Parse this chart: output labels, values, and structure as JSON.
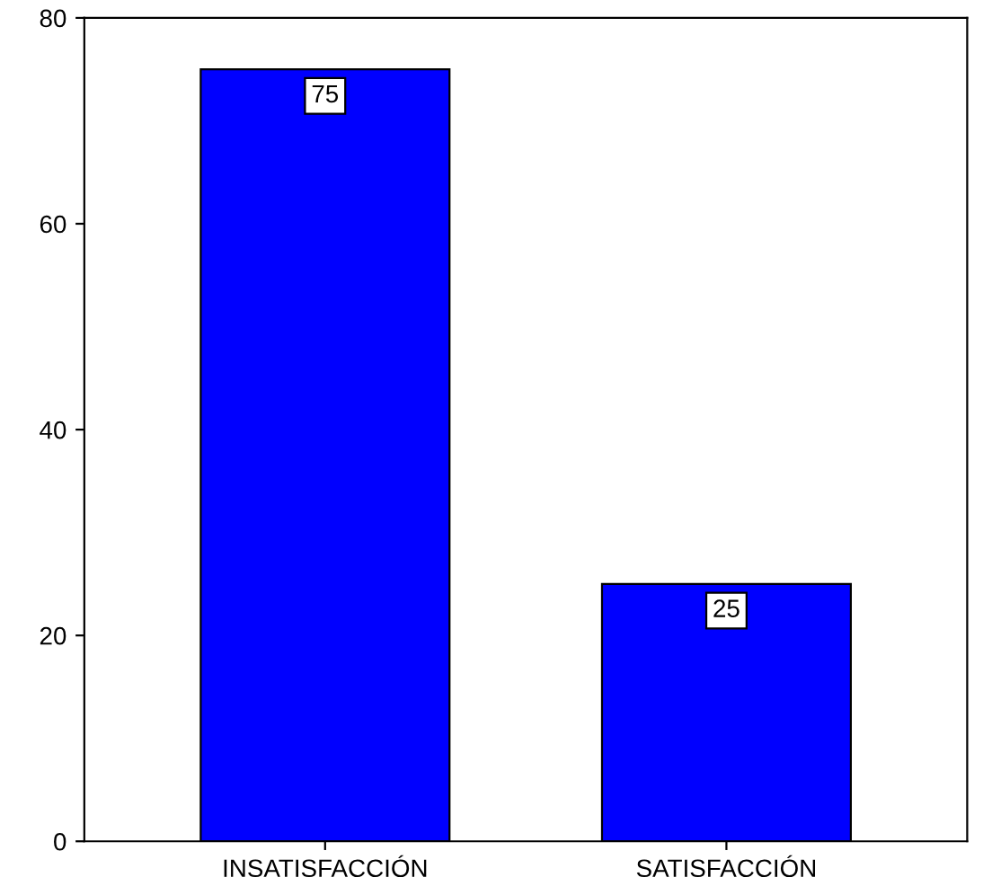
{
  "chart_data": {
    "type": "bar",
    "categories": [
      "INSATISFACCIÓN",
      "SATISFACCIÓN"
    ],
    "values": [
      75,
      25
    ],
    "color": "#0000ff",
    "ylim": [
      0,
      80
    ],
    "yticks": [
      0,
      20,
      40,
      60,
      80
    ],
    "grid": false,
    "data_labels": true
  }
}
